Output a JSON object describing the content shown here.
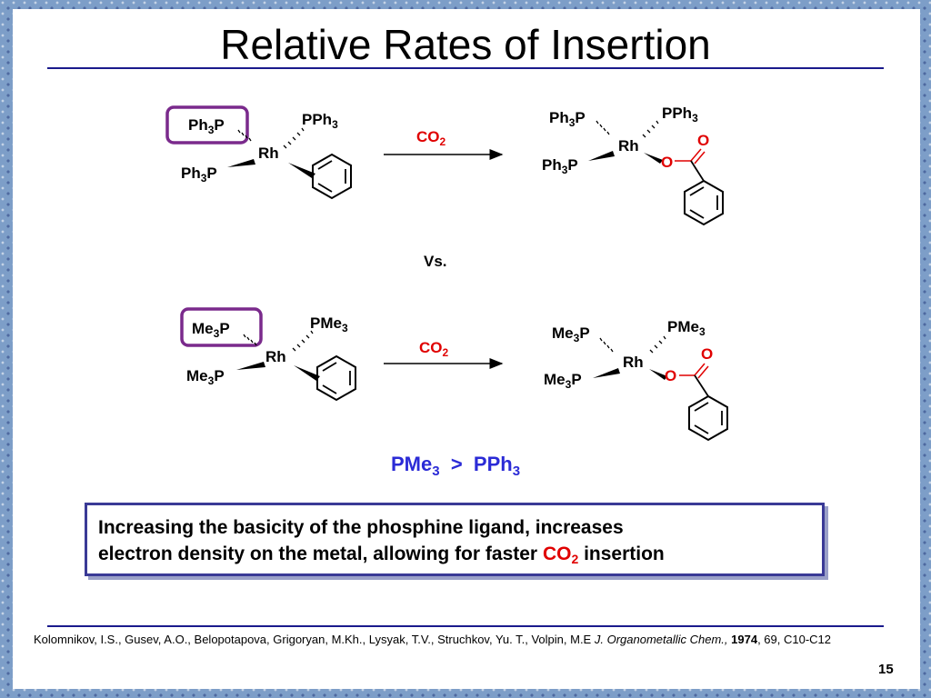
{
  "title": "Relative Rates of Insertion",
  "reaction1": {
    "start": {
      "ligand_tl": "Ph3P",
      "ligand_tr": "PPh3",
      "metal": "Rh",
      "ligand_bl": "Ph3P"
    },
    "reagent": "CO2",
    "product": {
      "ligand_tl": "Ph3P",
      "ligand_tr": "PPh3",
      "metal": "Rh",
      "ligand_bl": "Ph3P",
      "carbonyl_o": "O",
      "bridge_o": "O"
    }
  },
  "versus": "Vs.",
  "reaction2": {
    "start": {
      "ligand_tl": "Me3P",
      "ligand_tr": "PMe3",
      "metal": "Rh",
      "ligand_bl": "Me3P"
    },
    "reagent": "CO2",
    "product": {
      "ligand_tl": "Me3P",
      "ligand_tr": "PMe3",
      "metal": "Rh",
      "ligand_bl": "Me3P",
      "carbonyl_o": "O",
      "bridge_o": "O"
    }
  },
  "comparison": {
    "left": "PMe3",
    "operator": ">",
    "right": "PPh3"
  },
  "summary": {
    "line1": "Increasing the basicity of the phosphine ligand, increases",
    "line2_pre": "electron density on the metal, allowing for faster",
    "line2_reagent": "CO2",
    "line2_post": "insertion"
  },
  "reference": {
    "authors": "Kolomnikov, I.S., Gusev, A.O., Belopotapova, Grigoryan, M.Kh., Lysyak, T.V., Struchkov, Yu. T., Volpin, M.E",
    "journal": "J. Organometallic Chem.,",
    "year": "1974",
    "details": ", 69, C10-C12"
  },
  "page_number": "15",
  "colors": {
    "title_rule": "#1a1a8c",
    "highlight_box": "#7a2a8c",
    "comparison_text": "#2b2bd6",
    "reagent_red": "#e00000",
    "summary_border": "#3a3a96"
  }
}
